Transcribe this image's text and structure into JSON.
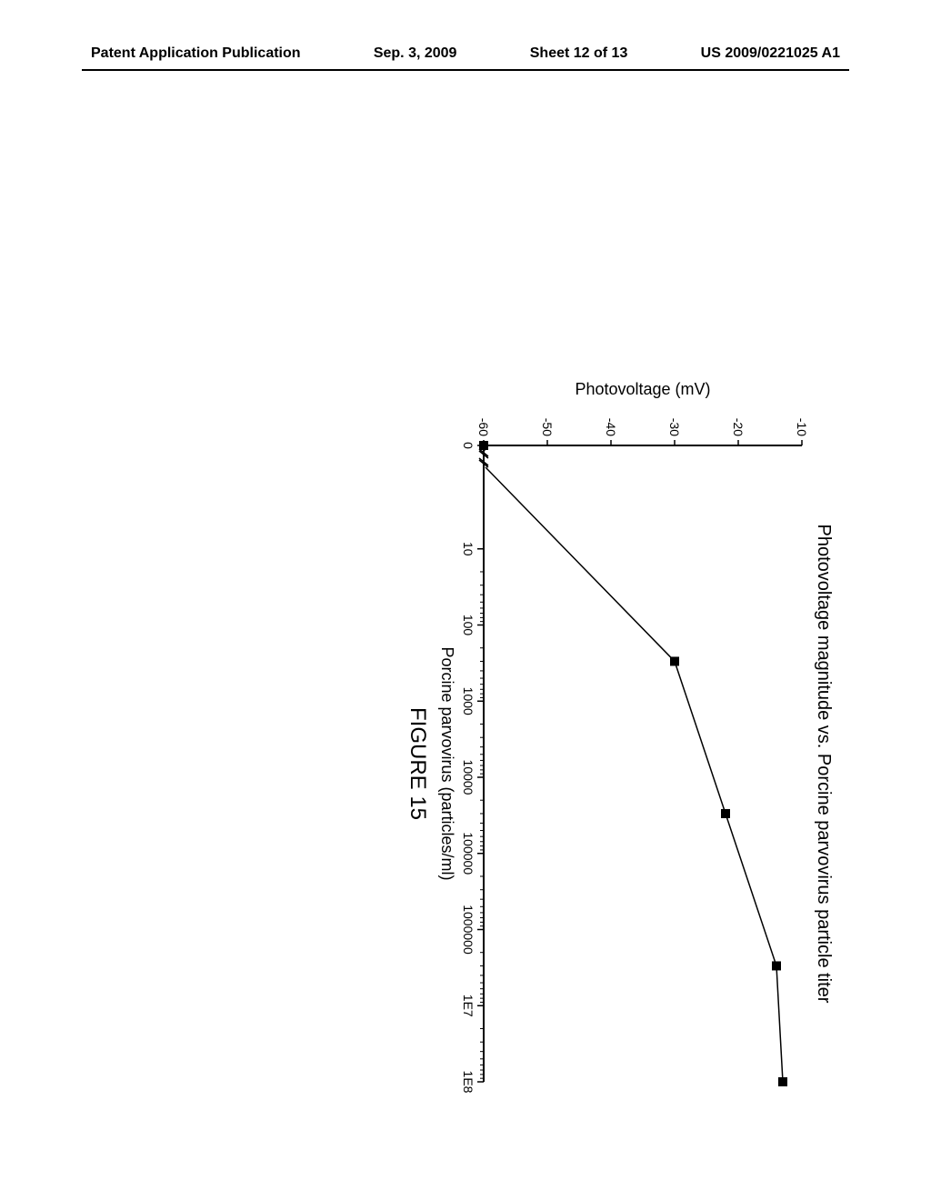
{
  "header": {
    "left": "Patent Application Publication",
    "mid": "Sep. 3, 2009",
    "sheet": "Sheet 12 of 13",
    "right": "US 2009/0221025 A1"
  },
  "chart": {
    "type": "line",
    "title": "Photovoltage magnitude vs. Porcine parvovirus particle titer",
    "title_fontsize": 20,
    "xlabel": "Porcine parvovirus (particles/ml)",
    "ylabel": "Photovoltage (mV)",
    "label_fontsize": 18,
    "figure_label": "FIGURE 15",
    "figure_fontsize": 24,
    "ylim": [
      -60,
      -10
    ],
    "ytick_step": 10,
    "yticks": [
      -10,
      -20,
      -30,
      -40,
      -50,
      -60
    ],
    "x_scale": "log",
    "xticks": [
      0,
      10,
      100,
      1000,
      10000,
      100000,
      1000000,
      10000000,
      100000000
    ],
    "xtick_labels": [
      "0",
      "10",
      "100",
      "1000",
      "10000",
      "100000",
      "1000000",
      "1E7",
      "1E8"
    ],
    "tick_fontsize": 14,
    "x_axis_break": true,
    "series": {
      "x": [
        0,
        300,
        30000,
        3000000,
        100000000
      ],
      "y": [
        -60,
        -30,
        -22,
        -14,
        -13
      ],
      "marker": "square",
      "marker_size": 10,
      "marker_color": "#000000",
      "line_color": "#000000",
      "line_width": 1.5
    },
    "background_color": "#ffffff",
    "axis_color": "#000000",
    "axis_width": 2
  }
}
